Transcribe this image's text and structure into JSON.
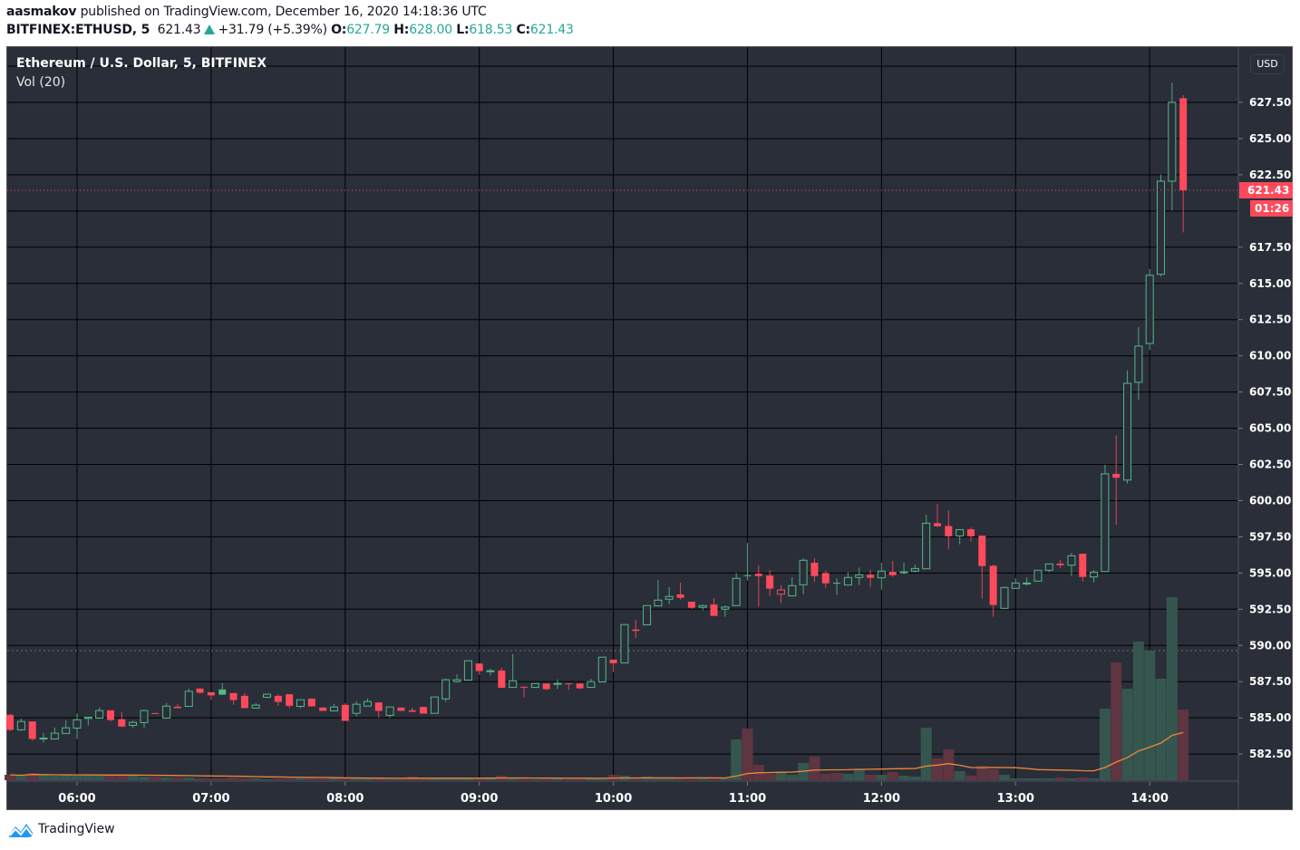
{
  "header": {
    "author": "aasmakov",
    "published_text": "published on TradingView.com, December 16, 2020 14:18:36 UTC",
    "symbol": "BITFINEX:ETHUSD, 5",
    "last_price": "621.43",
    "change": "+31.79 (+5.39%)",
    "o_label": "O:",
    "o_value": "627.79",
    "h_label": "H:",
    "h_value": "628.00",
    "l_label": "L:",
    "l_value": "618.53",
    "c_label": "C:",
    "c_value": "621.43"
  },
  "legend": {
    "title": "Ethereum / U.S. Dollar, 5, BITFINEX",
    "volume": "Vol (20)"
  },
  "price_axis": {
    "currency": "USD",
    "current_price_label": "621.43",
    "countdown_label": "01:26"
  },
  "footer": {
    "brand": "TradingView"
  },
  "colors": {
    "background": "#2a2e39",
    "up": "#53b987",
    "down": "#ff4a5c",
    "volume_up": "#35564f",
    "volume_down": "#5e3541",
    "volume_ma": "#f0883a",
    "header_value": "#26a69a",
    "logo": "#2196f3"
  },
  "chart_data": {
    "type": "candlestick",
    "interval_minutes": 5,
    "ylim": [
      580.5,
      631
    ],
    "grid": true,
    "y_ticks": [
      "627.50",
      "625.00",
      "622.50",
      "617.50",
      "615.00",
      "612.50",
      "610.00",
      "607.50",
      "605.00",
      "602.50",
      "600.00",
      "597.50",
      "595.00",
      "592.50",
      "590.00",
      "587.50",
      "585.00",
      "582.50"
    ],
    "y_gridlines": [
      582.5,
      585,
      587.5,
      590,
      592.5,
      595,
      597.5,
      600,
      602.5,
      605,
      607.5,
      610,
      612.5,
      615,
      617.5,
      620,
      622.5,
      625,
      627.5,
      630
    ],
    "x_ticks": [
      "06:00",
      "07:00",
      "08:00",
      "09:00",
      "10:00",
      "11:00",
      "12:00",
      "13:00",
      "14:00"
    ],
    "start_time": "05:30",
    "previous_close": 589.64,
    "current_price": 621.43,
    "volume_ma_length": 20,
    "ohlc": [
      [
        585.21,
        585.27,
        584.1,
        584.17
      ],
      [
        584.17,
        584.96,
        584.1,
        584.75
      ],
      [
        584.75,
        584.75,
        583.42,
        583.54
      ],
      [
        583.56,
        583.96,
        583.3,
        583.6
      ],
      [
        583.54,
        584.33,
        583.5,
        583.94
      ],
      [
        583.92,
        584.83,
        583.9,
        584.31
      ],
      [
        584.29,
        585.31,
        583.54,
        584.87
      ],
      [
        584.96,
        585.06,
        584.48,
        585.04
      ],
      [
        584.98,
        585.71,
        584.94,
        585.5
      ],
      [
        585.52,
        585.52,
        584.73,
        584.85
      ],
      [
        584.9,
        585.4,
        584.35,
        584.4
      ],
      [
        584.48,
        584.79,
        584.29,
        584.69
      ],
      [
        584.67,
        585.58,
        584.29,
        585.5
      ],
      [
        585.33,
        585.33,
        585.31,
        585.31
      ],
      [
        584.98,
        586.02,
        584.98,
        585.81
      ],
      [
        585.77,
        585.94,
        585.67,
        585.67
      ],
      [
        585.79,
        587.02,
        585.79,
        586.83
      ],
      [
        587.02,
        587.02,
        586.67,
        586.73
      ],
      [
        586.77,
        586.77,
        586.23,
        586.55
      ],
      [
        586.96,
        587.4,
        586.58,
        586.6
      ],
      [
        586.71,
        586.71,
        585.9,
        586.23
      ],
      [
        586.52,
        586.71,
        585.67,
        585.67
      ],
      [
        585.67,
        586.02,
        585.67,
        585.88
      ],
      [
        586.42,
        586.63,
        586.35,
        586.63
      ],
      [
        586.52,
        586.63,
        585.83,
        586.1
      ],
      [
        586.63,
        586.63,
        585.67,
        585.83
      ],
      [
        585.79,
        586.25,
        585.67,
        586.25
      ],
      [
        586.33,
        586.33,
        585.79,
        585.79
      ],
      [
        585.71,
        585.71,
        585.48,
        585.48
      ],
      [
        585.48,
        585.96,
        585.48,
        585.75
      ],
      [
        585.9,
        586.02,
        584.79,
        584.79
      ],
      [
        585.31,
        586.15,
        585.1,
        585.94
      ],
      [
        585.81,
        586.33,
        585.81,
        586.13
      ],
      [
        586.06,
        586.06,
        585.0,
        585.48
      ],
      [
        585.17,
        585.75,
        585.0,
        585.75
      ],
      [
        585.71,
        585.71,
        585.48,
        585.48
      ],
      [
        585.52,
        585.71,
        585.38,
        585.42
      ],
      [
        585.75,
        585.75,
        585.29,
        585.29
      ],
      [
        585.31,
        586.44,
        585.31,
        586.44
      ],
      [
        586.31,
        587.71,
        586.1,
        587.63
      ],
      [
        587.5,
        588.0,
        587.46,
        587.63
      ],
      [
        587.6,
        588.94,
        587.6,
        588.94
      ],
      [
        588.75,
        588.75,
        587.98,
        588.23
      ],
      [
        588.2,
        588.4,
        587.92,
        588.25
      ],
      [
        588.27,
        588.46,
        587.08,
        587.08
      ],
      [
        587.1,
        589.4,
        587.1,
        587.56
      ],
      [
        587.15,
        587.15,
        586.42,
        587.1
      ],
      [
        587.1,
        587.37,
        587.1,
        587.37
      ],
      [
        587.37,
        587.37,
        586.92,
        586.98
      ],
      [
        587.35,
        587.65,
        586.98,
        587.38
      ],
      [
        587.38,
        587.38,
        586.92,
        587.35
      ],
      [
        587.37,
        587.37,
        586.98,
        587.04
      ],
      [
        587.1,
        587.69,
        587.08,
        587.5
      ],
      [
        587.48,
        589.19,
        587.48,
        589.19
      ],
      [
        589.02,
        589.02,
        588.15,
        588.77
      ],
      [
        588.79,
        591.44,
        588.77,
        591.44
      ],
      [
        591.1,
        591.77,
        590.52,
        591.0
      ],
      [
        591.42,
        592.75,
        591.42,
        592.75
      ],
      [
        592.73,
        594.52,
        592.73,
        593.13
      ],
      [
        593.19,
        594.02,
        592.85,
        593.38
      ],
      [
        593.52,
        594.33,
        593.17,
        593.29
      ],
      [
        593.02,
        593.02,
        592.52,
        592.6
      ],
      [
        592.63,
        592.81,
        592.42,
        592.75
      ],
      [
        592.83,
        593.27,
        592.04,
        592.04
      ],
      [
        592.5,
        592.77,
        591.98,
        592.65
      ],
      [
        592.75,
        595.0,
        592.75,
        594.63
      ],
      [
        594.85,
        597.08,
        594.48,
        594.8
      ],
      [
        594.96,
        595.52,
        592.67,
        594.79
      ],
      [
        594.83,
        595.21,
        593.4,
        593.92
      ],
      [
        593.54,
        594.15,
        592.92,
        593.83
      ],
      [
        593.42,
        594.71,
        593.38,
        594.13
      ],
      [
        594.19,
        596.02,
        593.54,
        595.88
      ],
      [
        595.71,
        596.02,
        594.42,
        594.79
      ],
      [
        595.0,
        595.19,
        593.98,
        594.29
      ],
      [
        594.33,
        594.63,
        593.48,
        594.31
      ],
      [
        594.17,
        595.06,
        594.17,
        594.69
      ],
      [
        594.69,
        595.38,
        594.17,
        594.88
      ],
      [
        594.88,
        595.21,
        594.04,
        594.67
      ],
      [
        594.67,
        595.71,
        593.85,
        595.13
      ],
      [
        595.08,
        595.83,
        594.73,
        594.85
      ],
      [
        595.04,
        595.71,
        594.92,
        595.08
      ],
      [
        595.13,
        595.58,
        595.04,
        595.31
      ],
      [
        595.29,
        599.02,
        595.29,
        598.44
      ],
      [
        598.44,
        599.77,
        598.17,
        598.23
      ],
      [
        598.25,
        599.33,
        596.67,
        597.54
      ],
      [
        597.56,
        598.0,
        596.98,
        598.0
      ],
      [
        598.02,
        598.15,
        597.17,
        597.54
      ],
      [
        597.58,
        597.58,
        593.23,
        595.48
      ],
      [
        595.5,
        595.58,
        591.98,
        592.79
      ],
      [
        592.56,
        594.06,
        592.56,
        594.0
      ],
      [
        593.94,
        594.63,
        593.94,
        594.31
      ],
      [
        594.29,
        594.69,
        594.13,
        594.31
      ],
      [
        594.44,
        595.19,
        594.44,
        595.19
      ],
      [
        595.19,
        595.63,
        595.06,
        595.63
      ],
      [
        595.65,
        595.9,
        595.35,
        595.54
      ],
      [
        595.54,
        596.38,
        594.79,
        596.19
      ],
      [
        596.33,
        596.33,
        594.42,
        594.73
      ],
      [
        594.73,
        595.21,
        594.35,
        595.06
      ],
      [
        595.1,
        602.48,
        595.1,
        601.85
      ],
      [
        601.85,
        604.5,
        598.33,
        601.58
      ],
      [
        601.42,
        609.0,
        601.19,
        608.1
      ],
      [
        608.17,
        612.0,
        606.96,
        610.67
      ],
      [
        610.85,
        616.0,
        610.4,
        615.56
      ],
      [
        615.63,
        622.52,
        615.48,
        622.06
      ],
      [
        622.06,
        628.85,
        620.04,
        627.5
      ],
      [
        627.79,
        628.0,
        618.53,
        621.43
      ]
    ],
    "volume": [
      6,
      5,
      8,
      6,
      5,
      6,
      5,
      6,
      5,
      5,
      6,
      6,
      4,
      4,
      3,
      3,
      3,
      2,
      2,
      2,
      3,
      2,
      2,
      1,
      2,
      2,
      2,
      3,
      2,
      2,
      3,
      2,
      2,
      3,
      1,
      2,
      4,
      2,
      2,
      3,
      3,
      2,
      2,
      2,
      5,
      2,
      2,
      1,
      2,
      2,
      1,
      1,
      2,
      2,
      6,
      5,
      3,
      4,
      3,
      2,
      2,
      3,
      2,
      3,
      2,
      45,
      57,
      17,
      7,
      9,
      6,
      19,
      26,
      7,
      8,
      7,
      12,
      6,
      6,
      9,
      5,
      4,
      58,
      24,
      34,
      10,
      5,
      16,
      12,
      6,
      2,
      2,
      2,
      2,
      3,
      2,
      3,
      2,
      79,
      130,
      101,
      153,
      143,
      112,
      202,
      78
    ]
  }
}
